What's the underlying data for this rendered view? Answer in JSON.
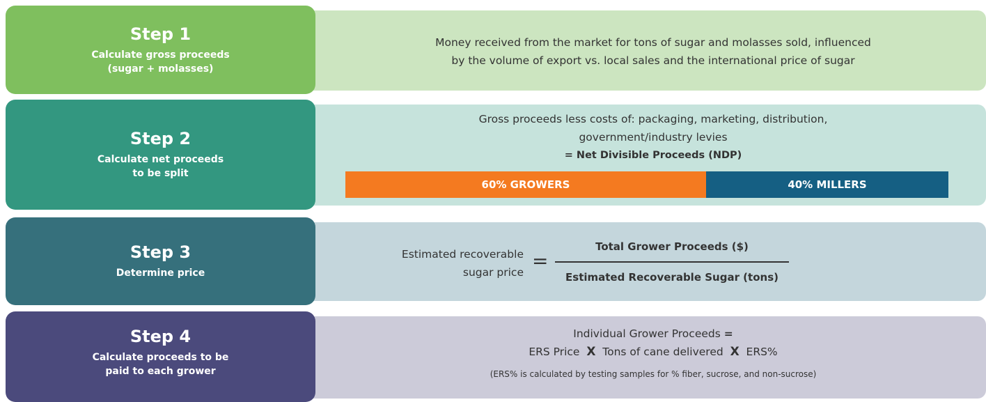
{
  "steps": [
    {
      "title": "Step 1",
      "subtitle": [
        "Calculate gross proceeds",
        "(sugar + molasses)"
      ],
      "description": [
        "Money received from the market for tons of sugar and molasses sold, influenced",
        "by the volume of export vs. local sales and the international price of sugar"
      ]
    },
    {
      "title": "Step 2",
      "subtitle": [
        "Calculate net proceeds",
        "to be split"
      ],
      "description": [
        "Gross proceeds less costs of: packaging, marketing, distribution,",
        "government/industry levies"
      ],
      "result": "= Net Divisible Proceeds (NDP)",
      "split": [
        "60% GROWERS",
        "40% MILLERS"
      ]
    },
    {
      "title": "Step 3",
      "subtitle": [
        "Determine price"
      ],
      "label": [
        "Estimated recoverable",
        "sugar price"
      ],
      "equals": "=",
      "numerator": "Total Grower Proceeds ($)",
      "denominator": "Estimated Recoverable Sugar (tons)"
    },
    {
      "title": "Step 4",
      "subtitle": [
        "Calculate proceeds to be",
        "paid to each grower"
      ],
      "formula": {
        "lhs": "Individual Grower Proceeds",
        "eq": "=",
        "terms": [
          "ERS Price",
          "X",
          "Tons of cane delivered",
          "X",
          "ERS%"
        ]
      },
      "note": "(ERS% is calculated by testing samples for % fiber, sucrose, and non-sucrose)"
    }
  ]
}
